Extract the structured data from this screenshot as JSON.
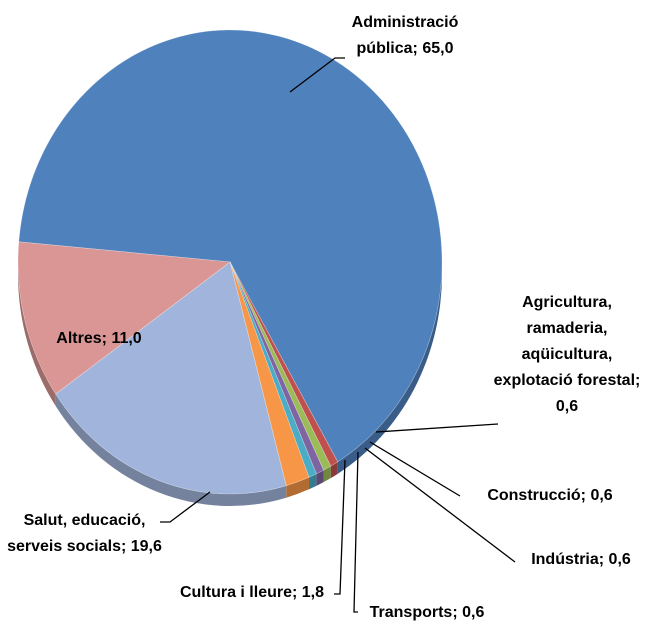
{
  "chart_data": {
    "type": "pie",
    "categories": [
      "Administració pública",
      "Agricultura, ramaderia, aqüicultura, explotació forestal",
      "Construcció",
      "Indústria",
      "Transports",
      "Cultura i lleure",
      "Salut, educació, serveis socials",
      "Altres"
    ],
    "values": [
      65.0,
      0.6,
      0.6,
      0.6,
      0.6,
      1.8,
      19.6,
      11.0
    ],
    "value_labels": [
      "65,0",
      "0,6",
      "0,6",
      "0,6",
      "0,6",
      "1,8",
      "19,6",
      "11,0"
    ],
    "label_separator": "; ",
    "colors": [
      "#4f81bd",
      "#c0504d",
      "#9bbb59",
      "#8064a2",
      "#4bacc6",
      "#f79646",
      "#a1b5dc",
      "#d99694"
    ]
  }
}
